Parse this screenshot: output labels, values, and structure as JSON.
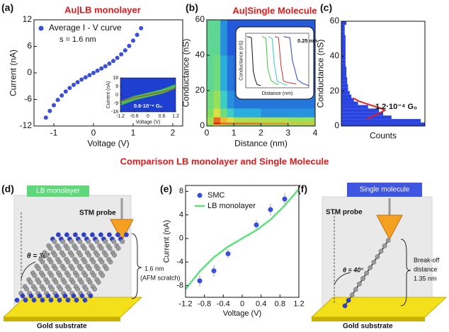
{
  "panel_labels": [
    "(a)",
    "(b)",
    "(c)",
    "(d)",
    "(e)",
    "(f)"
  ],
  "heading": "Comparison LB monolayer and Single Molecule",
  "chart_data": [
    {
      "type": "scatter",
      "title": "Au|LB monolayer",
      "x_label": "Voltage (V)",
      "y_label": "Current (nA)",
      "xlim": [
        -1.5,
        2.25
      ],
      "xticks": [
        -1,
        0,
        1,
        2
      ],
      "ylim": [
        -12,
        12
      ],
      "yticks": [
        -12,
        -6,
        0,
        6,
        12
      ],
      "annotation": "s = 1.6 nm",
      "series": [
        {
          "name": "Average I - V curve",
          "color": "#3b4fd8",
          "x": [
            -1.2,
            -1.1,
            -1.0,
            -0.9,
            -0.8,
            -0.7,
            -0.6,
            -0.5,
            -0.4,
            -0.3,
            -0.2,
            -0.1,
            0,
            0.1,
            0.2,
            0.3,
            0.4,
            0.5,
            0.6,
            0.7,
            0.8,
            0.9,
            1.0,
            1.1,
            1.2
          ],
          "values": [
            -10.1,
            -8.6,
            -7.3,
            -6.1,
            -5.1,
            -4.2,
            -3.4,
            -2.7,
            -2.1,
            -1.5,
            -1.0,
            -0.5,
            0,
            0.5,
            1.0,
            1.5,
            2.1,
            2.7,
            3.4,
            4.2,
            5.1,
            6.1,
            7.3,
            8.6,
            10.1
          ]
        }
      ]
    },
    {
      "type": "line",
      "x_label": "Voltage (V)",
      "y_label": "Current (nA)",
      "xlim": [
        -1.2,
        1.2
      ],
      "xticks": [
        -1.2,
        -0.6,
        0,
        0.6,
        1.2
      ],
      "ylim": [
        -18,
        18
      ],
      "yticks": [
        -18,
        -9,
        0,
        9,
        18
      ],
      "background": "#1e3fd0",
      "annotation": "0.6·10⁻⁴ G₀",
      "series": [
        {
          "color": "#46c04e",
          "band": true,
          "x": [
            -1.2,
            -0.6,
            0,
            0.6,
            1.2
          ],
          "values": [
            -9,
            -3.5,
            0,
            3.5,
            9
          ]
        },
        {
          "color": "#e0301e",
          "x": [
            -1.2,
            -0.6,
            0,
            0.6,
            1.2
          ],
          "values": [
            -7,
            -3,
            0,
            3,
            7
          ]
        }
      ]
    },
    {
      "type": "heatmap",
      "title": "Au|Single Molecule",
      "x_label": "Distance (nm)",
      "y_label": "Conductance (nS)",
      "xlim": [
        0,
        4
      ],
      "xticks": [
        0,
        1,
        2,
        3,
        4
      ],
      "ylim": [
        0,
        60
      ],
      "yticks": [
        0,
        20,
        40,
        60
      ],
      "x_edges": [
        0,
        0.25,
        0.5,
        0.75,
        1,
        2,
        3,
        4
      ],
      "y_edges": [
        0,
        1,
        2,
        5,
        10,
        20,
        40,
        60
      ],
      "zlim": [
        0,
        1
      ],
      "colormap": [
        "#1f3fd8",
        "#2ec8e0",
        "#7fe060",
        "#f0e040",
        "#e02010"
      ],
      "z": [
        [
          0.5,
          0.7,
          0.6,
          0.5,
          0.5,
          0.5,
          0.5
        ],
        [
          0.6,
          1.0,
          0.9,
          0.9,
          0.9,
          0.85,
          0.8
        ],
        [
          0.6,
          0.9,
          0.8,
          0.7,
          0.6,
          0.6,
          0.55
        ],
        [
          0.5,
          0.7,
          0.45,
          0.3,
          0.2,
          0.15,
          0.15
        ],
        [
          0.45,
          0.55,
          0.3,
          0.15,
          0.1,
          0.1,
          0.1
        ],
        [
          0.4,
          0.45,
          0.2,
          0.1,
          0.05,
          0.05,
          0.05
        ],
        [
          0.4,
          0.4,
          0.15,
          0.05,
          0.05,
          0.05,
          0.05
        ]
      ]
    },
    {
      "type": "line",
      "x_label": "Distance (nm)",
      "y_label": "Conductance (nS)",
      "xlim": [
        0,
        10
      ],
      "ylim": [
        0,
        10
      ],
      "annotation": "0.25 nm",
      "series": [
        {
          "color": "#111111",
          "x": [
            0.2,
            0.9,
            1.2,
            1.5,
            1.8,
            2.4
          ],
          "values": [
            9.4,
            9.2,
            3,
            1.5,
            0.6,
            0.4
          ]
        },
        {
          "color": "#3cc83c",
          "x": [
            2.6,
            3.2,
            3.5,
            4.0,
            4.6,
            5.2
          ],
          "values": [
            9.4,
            9.1,
            3.5,
            1.4,
            0.8,
            0.6
          ]
        },
        {
          "color": "#30c8c0",
          "x": [
            3.6,
            4.2,
            4.5,
            5.0,
            5.8,
            6.6
          ],
          "values": [
            9.4,
            9.0,
            4.5,
            1.2,
            0.8,
            0.5
          ]
        },
        {
          "color": "#e02828",
          "x": [
            4.6,
            5.2,
            5.6,
            6.0,
            7.0,
            8.0
          ],
          "values": [
            9.4,
            9.2,
            4,
            1.2,
            0.9,
            0.7
          ]
        },
        {
          "color": "#2840d8",
          "x": [
            6.0,
            7.0,
            7.4,
            8.2,
            9.0,
            10
          ],
          "values": [
            9.4,
            9.2,
            5,
            1.5,
            0.8,
            0.4
          ]
        }
      ]
    },
    {
      "type": "histogram",
      "orientation": "horizontal",
      "x_label": "Counts",
      "y_label": "Conductance (nS)",
      "xlim": [
        0,
        100
      ],
      "ylim": [
        0,
        60
      ],
      "yticks": [
        0,
        20,
        40,
        60
      ],
      "color": "#2a44e0",
      "bins": [
        0,
        2,
        4,
        6,
        8,
        10,
        12,
        14,
        16,
        18,
        20,
        22,
        24,
        26,
        28,
        30,
        32,
        34,
        36,
        38,
        40,
        42,
        44,
        46,
        48,
        50,
        52,
        54,
        56,
        58,
        60
      ],
      "counts": [
        100,
        95,
        60,
        50,
        45,
        32,
        20,
        15,
        12,
        10,
        8,
        8,
        7,
        7,
        6,
        6,
        6,
        5,
        5,
        5,
        5,
        5,
        5,
        5,
        5,
        5,
        4,
        4,
        4,
        6
      ],
      "annotation": "1.2·10⁻⁴ G₀",
      "fit": {
        "color": "#e02020",
        "conductance": [
          4,
          6,
          8,
          9,
          10,
          12,
          14,
          16
        ],
        "counts": [
          30,
          40,
          48,
          52,
          48,
          35,
          22,
          14
        ]
      }
    },
    {
      "type": "scatter",
      "x_label": "Voltage (V)",
      "y_label": "Current (nA)",
      "xlim": [
        -1.2,
        1.2
      ],
      "xticks": [
        -1.2,
        -0.8,
        -0.4,
        0,
        0.4,
        0.8,
        1.2
      ],
      "ylim": [
        -10,
        9
      ],
      "yticks": [
        -8,
        -4,
        0,
        4,
        8
      ],
      "legend": "upper left",
      "series": [
        {
          "name": "SMC",
          "color": "#3a50dc",
          "x": [
            -0.9,
            -0.6,
            -0.3,
            0.3,
            0.6,
            0.9
          ],
          "values": [
            -7.2,
            -5.5,
            -2.6,
            2.3,
            4.9,
            6.7
          ],
          "errors": [
            1.0,
            1.0,
            0.8,
            0.8,
            1.0,
            1.0
          ]
        },
        {
          "name": "LB monolayer",
          "color": "#5ee07a",
          "type": "line",
          "x": [
            -1.2,
            -0.9,
            -0.6,
            -0.3,
            0,
            0.3,
            0.6,
            0.9,
            1.2
          ],
          "values": [
            -8.6,
            -5.6,
            -3.2,
            -1.4,
            0,
            1.4,
            3.2,
            5.6,
            8.4
          ]
        }
      ]
    }
  ],
  "diagrams": {
    "d": {
      "banner": "LB monolayer",
      "probe": "STM probe",
      "angle": "θ = 30°",
      "height": "1.6 nm",
      "height_note": "(AFM scratch)",
      "substrate": "Gold substrate"
    },
    "f": {
      "banner": "Single molecule",
      "probe": "STM probe",
      "angle": "θ = 40°",
      "distance": [
        "Break-off",
        "distance",
        "1.35 nm"
      ],
      "substrate": "Gold substrate"
    }
  }
}
